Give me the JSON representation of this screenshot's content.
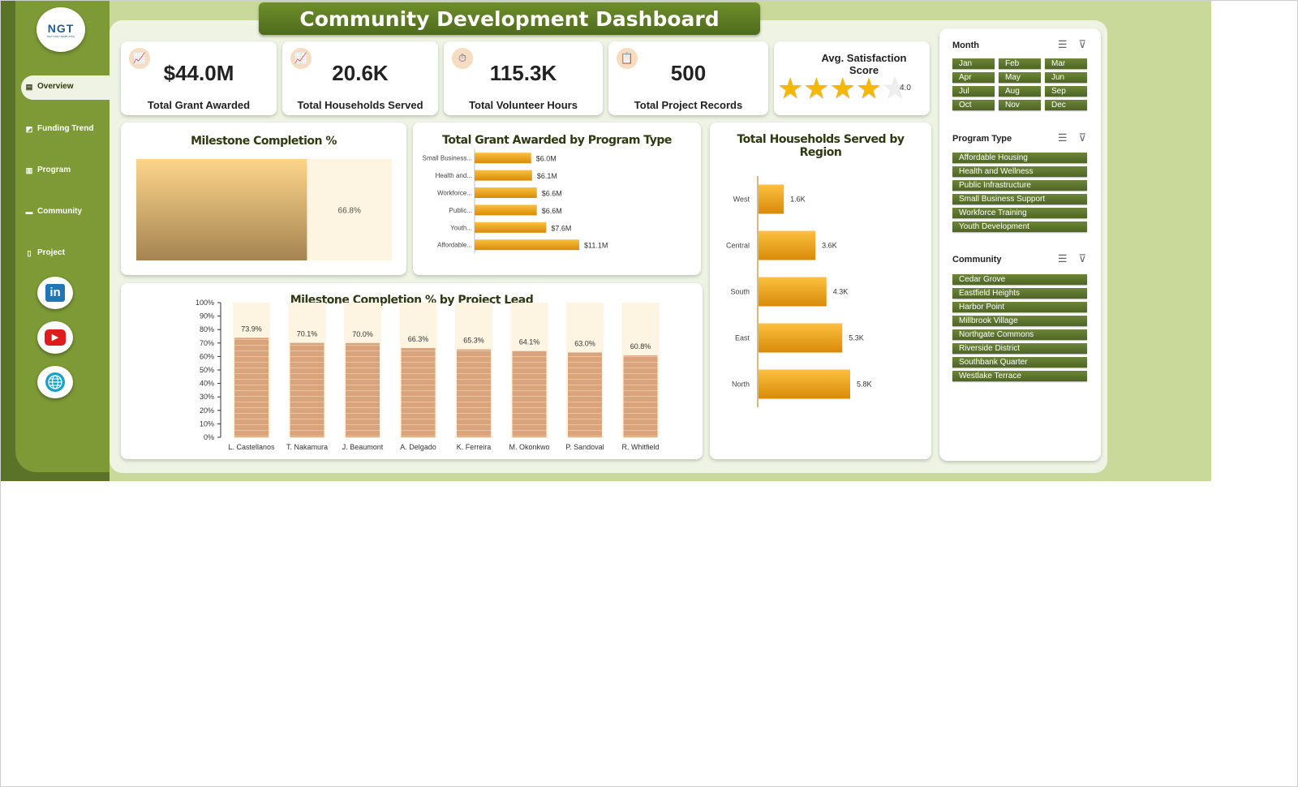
{
  "header": {
    "title": "Community Development Dashboard"
  },
  "logo": {
    "text": "NGT",
    "subtext": "NEXT GEN TEMPLATES"
  },
  "nav": [
    {
      "label": "Overview",
      "icon": "bar-chart-icon",
      "active": true
    },
    {
      "label": "Funding Trend",
      "icon": "trend-icon",
      "active": false
    },
    {
      "label": "Program",
      "icon": "clipboard-icon",
      "active": false
    },
    {
      "label": "Community",
      "icon": "folder-icon",
      "active": false
    },
    {
      "label": "Project",
      "icon": "document-icon",
      "active": false
    }
  ],
  "social": [
    {
      "label": "in",
      "icon": "linkedin-icon"
    },
    {
      "label": "▶",
      "icon": "youtube-icon"
    },
    {
      "label": "",
      "icon": "globe-icon"
    }
  ],
  "kpis": [
    {
      "value": "$44.0M",
      "label": "Total Grant Awarded",
      "icon": "trend-chart-icon"
    },
    {
      "value": "20.6K",
      "label": "Total Households Served",
      "icon": "trend-chart-icon"
    },
    {
      "value": "115.3K",
      "label": "Total Volunteer Hours",
      "icon": "stopwatch-icon"
    },
    {
      "value": "500",
      "label": "Total Project Records",
      "icon": "clipboard-icon"
    }
  ],
  "satisfaction": {
    "title": "Avg. Satisfaction Score",
    "value": "4.0",
    "score": 4.0,
    "max": 5
  },
  "chart_data": [
    {
      "type": "bar",
      "title": "Milestone Completion %",
      "orientation": "horizontal-progress",
      "values": [
        66.8
      ],
      "labels": [
        "66.8%"
      ],
      "xlim": [
        0,
        100
      ]
    },
    {
      "type": "bar",
      "title": "Total Grant Awarded by Program Type",
      "orientation": "horizontal",
      "categories": [
        "Small Business...",
        "Health and...",
        "Workforce...",
        "Public...",
        "Youth...",
        "Affordable..."
      ],
      "values": [
        6.0,
        6.1,
        6.6,
        6.6,
        7.6,
        11.1
      ],
      "labels": [
        "$6.0M",
        "$6.1M",
        "$6.6M",
        "$6.6M",
        "$7.6M",
        "$11.1M"
      ],
      "unit": "$M"
    },
    {
      "type": "bar",
      "title": "Total Households Served by Region",
      "orientation": "horizontal",
      "categories": [
        "West",
        "Central",
        "South",
        "East",
        "North"
      ],
      "values": [
        1.6,
        3.6,
        4.3,
        5.3,
        5.8
      ],
      "labels": [
        "1.6K",
        "3.6K",
        "4.3K",
        "5.3K",
        "5.8K"
      ],
      "unit": "K"
    },
    {
      "type": "bar",
      "title": "Milestone Completion % by Project Lead",
      "categories": [
        "L. Castellanos",
        "T. Nakamura",
        "J. Beaumont",
        "A. Delgado",
        "K. Ferreira",
        "M. Okonkwo",
        "P. Sandoval",
        "R. Whitfield"
      ],
      "values": [
        73.9,
        70.1,
        70.0,
        66.3,
        65.3,
        64.1,
        63.0,
        60.8
      ],
      "labels": [
        "73.9%",
        "70.1%",
        "70.0%",
        "66.3%",
        "65.3%",
        "64.1%",
        "63.0%",
        "60.8%"
      ],
      "ylim": [
        0,
        100
      ],
      "yticks": [
        "0%",
        "10%",
        "20%",
        "30%",
        "40%",
        "50%",
        "60%",
        "70%",
        "80%",
        "90%",
        "100%"
      ]
    }
  ],
  "slicers": [
    {
      "title": "Month",
      "items": [
        "Jan",
        "Feb",
        "Mar",
        "Apr",
        "May",
        "Jun",
        "Jul",
        "Aug",
        "Sep",
        "Oct",
        "Nov",
        "Dec"
      ]
    },
    {
      "title": "Program Type",
      "items": [
        "Affordable Housing",
        "Health and Wellness",
        "Public Infrastructure",
        "Small Business Support",
        "Workforce Training",
        "Youth Development"
      ]
    },
    {
      "title": "Community",
      "items": [
        "Cedar Grove",
        "Eastfield Heights",
        "Harbor Point",
        "Millbrook Village",
        "Northgate Commons",
        "Riverside District",
        "Southbank Quarter",
        "Westlake Terrace"
      ]
    }
  ],
  "colors": {
    "accent": "#7d9a36",
    "dark": "#5a7328",
    "bar_orange": "#f2a818",
    "bar_tan": "#d9a47c",
    "track": "#fdf4e1"
  }
}
